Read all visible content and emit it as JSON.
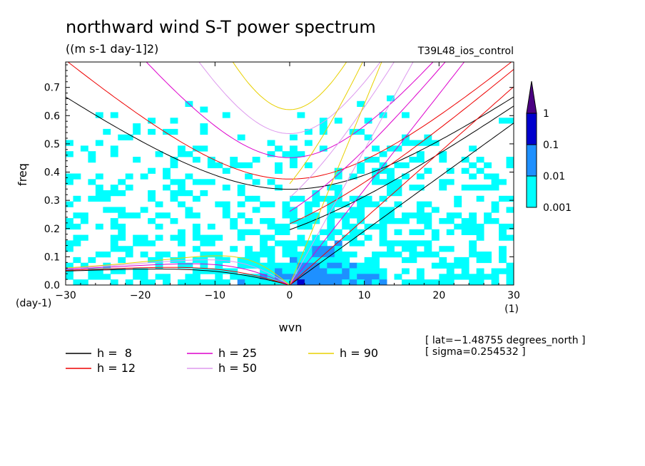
{
  "chart_data": {
    "type": "heatmap",
    "title": "northward wind S-T power spectrum",
    "subtitle": "((m s-1 day-1]2)",
    "run_label": "T39L48_ios_control",
    "xlabel": "wvn",
    "ylabel": "freq",
    "x_unit": "(1)",
    "y_unit": "(day-1)",
    "xlim": [
      -30,
      30
    ],
    "ylim": [
      0,
      0.79
    ],
    "x_ticks": [
      -30,
      -20,
      -10,
      0,
      10,
      20,
      30
    ],
    "x_tick_labels": [
      "−30",
      "−20",
      "−10",
      "0",
      "10",
      "20",
      "30"
    ],
    "y_ticks": [
      0,
      0.1,
      0.2,
      0.3,
      0.4,
      0.5,
      0.6,
      0.7
    ],
    "y_tick_labels": [
      "0.0",
      "0.1",
      "0.2",
      "0.3",
      "0.4",
      "0.5",
      "0.6",
      "0.7"
    ],
    "colorbar": {
      "levels": [
        0.001,
        0.01,
        0.1,
        1
      ],
      "labels": [
        "0.001",
        "0.01",
        "0.1",
        "1"
      ],
      "colors": [
        "#00ffff",
        "#1e90ff",
        "#0000cd",
        "#4b0082"
      ]
    },
    "legend": [
      {
        "label": "h =  8",
        "color": "#000000"
      },
      {
        "label": "h = 25",
        "color": "#dd00cc"
      },
      {
        "label": "h = 90",
        "color": "#e8d000"
      },
      {
        "label": "h = 12",
        "color": "#ee0000"
      },
      {
        "label": "h = 50",
        "color": "#dd99ee"
      }
    ],
    "equivalent_depths": [
      8,
      12,
      25,
      50,
      90
    ],
    "annotations": [
      "[ lat=−1.48755 degrees_north ]",
      "[ sigma=0.254532 ]"
    ]
  }
}
